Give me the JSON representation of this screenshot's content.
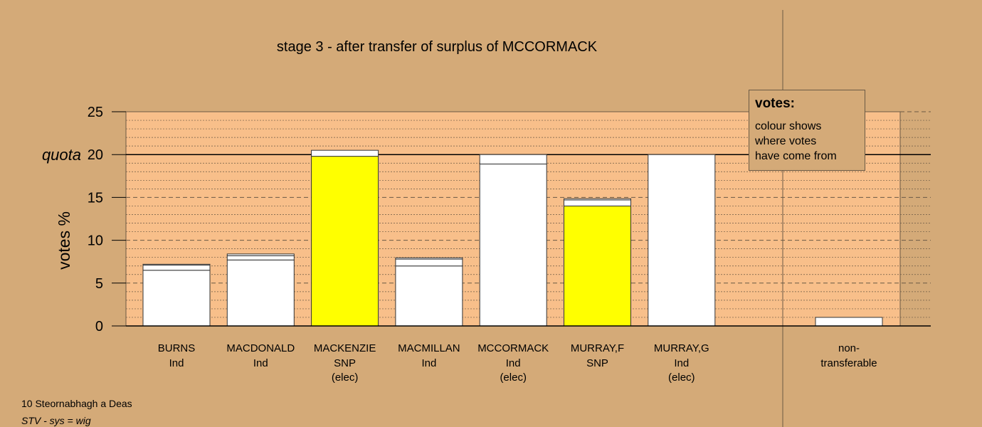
{
  "chart_data": {
    "type": "bar",
    "title": "stage 3 - after transfer of surplus of MCCORMACK",
    "ylabel": "votes %",
    "ylim": [
      0,
      25
    ],
    "yticks": [
      0,
      5,
      10,
      15,
      20,
      25
    ],
    "quota": {
      "label": "quota",
      "value": 20
    },
    "colors": {
      "background": "#d4aa78",
      "plot": "#f8bf8a",
      "snp": "#ffff00",
      "other": "#ffffff"
    },
    "candidates": [
      {
        "name": "BURNS",
        "party": "Ind",
        "elected": "",
        "segments": [
          {
            "value": 6.5,
            "color": "#ffffff"
          },
          {
            "value": 0.6,
            "color": "#ffffff"
          },
          {
            "value": 0.1,
            "color": "#ffffff"
          }
        ]
      },
      {
        "name": "MACDONALD",
        "party": "Ind",
        "elected": "",
        "segments": [
          {
            "value": 7.7,
            "color": "#ffffff"
          },
          {
            "value": 0.5,
            "color": "#ffffff"
          },
          {
            "value": 0.2,
            "color": "#ffffff"
          }
        ]
      },
      {
        "name": "MACKENZIE",
        "party": "SNP",
        "elected": "(elec)",
        "segments": [
          {
            "value": 19.8,
            "color": "#ffff00"
          },
          {
            "value": 0.7,
            "color": "#ffffff"
          }
        ]
      },
      {
        "name": "MACMILLAN",
        "party": "Ind",
        "elected": "",
        "segments": [
          {
            "value": 7.0,
            "color": "#ffffff"
          },
          {
            "value": 0.8,
            "color": "#ffffff"
          },
          {
            "value": 0.15,
            "color": "#ffffff"
          }
        ]
      },
      {
        "name": "MCCORMACK",
        "party": "Ind",
        "elected": "(elec)",
        "segments": [
          {
            "value": 18.9,
            "color": "#ffffff"
          },
          {
            "value": 1.1,
            "color": "#ffffff"
          }
        ]
      },
      {
        "name": "MURRAY,F",
        "party": "SNP",
        "elected": "",
        "segments": [
          {
            "value": 14.0,
            "color": "#ffff00"
          },
          {
            "value": 0.7,
            "color": "#ffffff"
          },
          {
            "value": 0.15,
            "color": "#ffffff"
          }
        ]
      },
      {
        "name": "MURRAY,G",
        "party": "Ind",
        "elected": "(elec)",
        "segments": [
          {
            "value": 20.0,
            "color": "#ffffff"
          }
        ]
      }
    ],
    "nontransferable": {
      "label1": "non-",
      "label2": "transferable",
      "value": 1.0
    }
  },
  "legend": {
    "title": "votes:",
    "lines": [
      "colour shows",
      "where votes",
      "have come from"
    ]
  },
  "footer": {
    "line1": "10 Steornabhagh a Deas",
    "line2": "STV - sys = wig"
  }
}
